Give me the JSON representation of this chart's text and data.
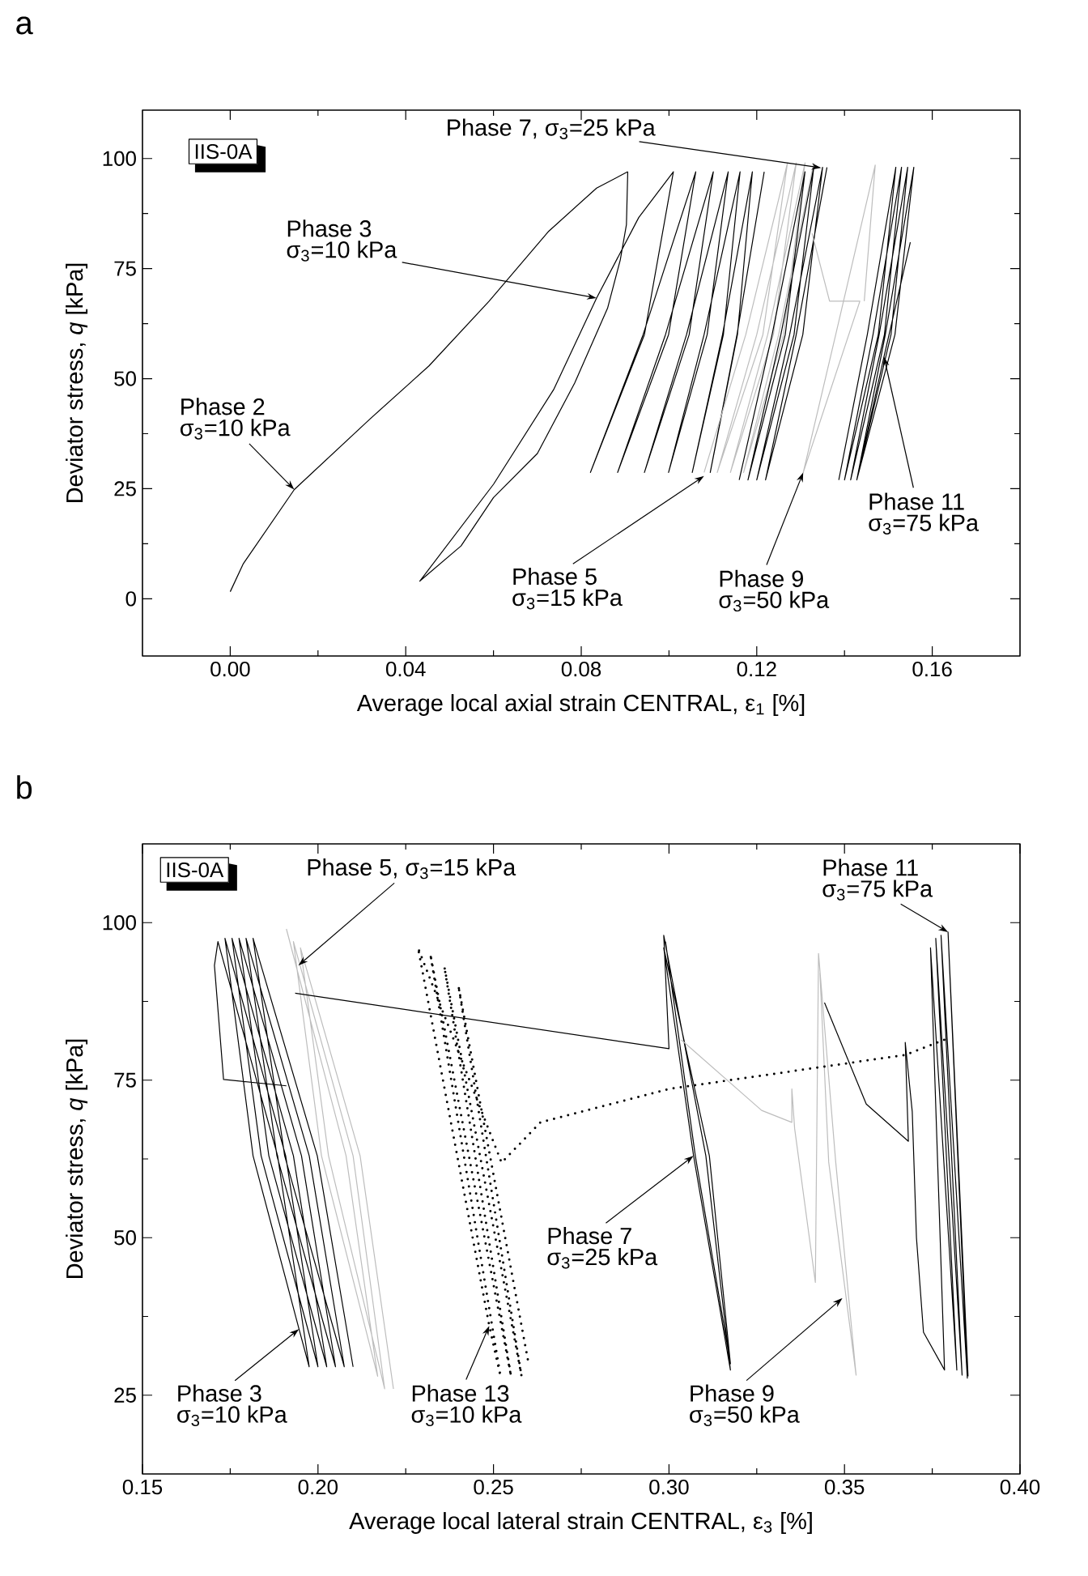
{
  "chart_data": [
    {
      "type": "line",
      "title": "a",
      "subtitle": "IIS-0A",
      "xlabel": "Average local axial strain CENTRAL, ε$_{1}$ [%]",
      "ylabel": "Deviator stress, *q* [kPa]",
      "xlim": [
        -0.02,
        0.18
      ],
      "ylim": [
        -13,
        111
      ],
      "xticks": [
        {
          "value": 0,
          "label": "0.00"
        },
        {
          "value": 0.04,
          "label": "0.04"
        },
        {
          "value": 0.08,
          "label": "0.08"
        },
        {
          "value": 0.12,
          "label": "0.12"
        },
        {
          "value": 0.16,
          "label": "0.16"
        }
      ],
      "yticks": [
        0,
        25,
        50,
        75,
        100
      ],
      "line_style": "solid",
      "series": [
        {
          "color": "#000000",
          "x": [
            0,
            0.003,
            0.0146,
            0.0317,
            0.0453,
            0.059,
            0.0726,
            0.0835,
            0.0906
          ],
          "values": [
            1.6,
            8,
            24.8,
            40.7,
            52.9,
            67.6,
            83.5,
            93.3,
            97
          ]
        },
        {
          "color": "#000000",
          "x": [
            0.0906,
            0.0903,
            0.0889,
            0.086,
            0.0785,
            0.07,
            0.06,
            0.0526,
            0.0432,
            0.06,
            0.0737,
            0.0835,
            0.0931,
            0.101,
            0.0944,
            0.0821,
            0.0941,
            0.1061,
            0.0999,
            0.0883,
            0.0992,
            0.1101,
            0.1046,
            0.0944,
            0.104,
            0.1135,
            0.1087,
            0.0999,
            0.108,
            0.1162,
            0.1124,
            0.1053,
            0.1122,
            0.119,
            0.1156,
            0.1094,
            0.1155,
            0.1217
          ],
          "values": [
            97,
            85,
            77,
            66,
            49,
            33,
            23,
            12,
            4,
            26,
            47.5,
            68.3,
            86.6,
            97,
            60,
            28.7,
            60,
            97,
            60,
            28.7,
            60,
            97,
            60,
            28.7,
            60,
            97,
            60,
            28.7,
            60,
            97,
            60,
            28.7,
            60,
            97,
            60,
            28.7,
            60,
            97
          ]
        },
        {
          "color": "#bdbdbd",
          "x": [
            0.108,
            0.1175,
            0.127,
            0.1214,
            0.111,
            0.12,
            0.129,
            0.1238,
            0.114,
            0.1225,
            0.131,
            0.1261,
            0.117,
            0.125,
            0.133
          ],
          "values": [
            28.7,
            60,
            99,
            60,
            28.7,
            60,
            99,
            60,
            28.7,
            60,
            99,
            60,
            28.7,
            60,
            99
          ]
        },
        {
          "color": "#000000",
          "x": [
            0.116,
            0.1235,
            0.131,
            0.1265,
            0.118,
            0.1255,
            0.133,
            0.1285,
            0.12,
            0.1275,
            0.135,
            0.1305,
            0.122,
            0.129,
            0.136
          ],
          "values": [
            27,
            60,
            97,
            60,
            27,
            60,
            98,
            60,
            27,
            60,
            98,
            60,
            27,
            60,
            98
          ]
        },
        {
          "color": "#bdbdbd",
          "x": [
            0.1326,
            0.1366,
            0.1435,
            0.1306,
            0.138,
            0.147,
            0.1445
          ],
          "values": [
            83,
            67.6,
            67.6,
            28.7,
            60,
            98.5,
            67.6
          ]
        },
        {
          "color": "#000000",
          "x": [
            0.1387,
            0.1452,
            0.1517,
            0.1477,
            0.14,
            0.1465,
            0.153,
            0.1491,
            0.1414,
            0.1479,
            0.1544,
            0.1506,
            0.1428,
            0.1493,
            0.1558,
            0.1515,
            0.1428,
            0.149,
            0.155
          ],
          "values": [
            27,
            60,
            98,
            60,
            27,
            60,
            98,
            60,
            27,
            60,
            98,
            60,
            27,
            60,
            98,
            60,
            27,
            55,
            81
          ]
        }
      ],
      "annotations": [
        "Phase 2",
        {
          "text": "σ$_{3}$=10 kPa",
          "x": 0.0146,
          "y": 24.8
        },
        "Phase 3",
        {
          "text": "σ$_{3}$=10 kPa",
          "x": 0.0835,
          "y": 68.3
        },
        {
          "text": "Phase 7, σ$_{3}$=25 kPa",
          "x": 0.1347,
          "y": 97.9
        },
        {
          "text": "Phase 5",
          "x": 0.108,
          "y": 27.9
        },
        "σ$_{3}$=15 kPa",
        {
          "text": "Phase 9",
          "x": 0.1306,
          "y": 28.7
        },
        "σ$_{3}$=50 kPa",
        {
          "text": "Phase 11",
          "x": 0.149,
          "y": 55
        },
        "σ$_{3}$=75 kPa"
      ]
    },
    {
      "type": "line",
      "title": "b",
      "subtitle": "IIS-0A",
      "xlabel": "Average local lateral strain CENTRAL, ε$_{3}$ [%]",
      "ylabel": "Deviator stress, *q* [kPa]",
      "xlim": [
        0.15,
        0.4
      ],
      "ylim": [
        12.5,
        112.5
      ],
      "xticks": [
        0.15,
        {
          "value": 0.2,
          "label": "0.20"
        },
        0.25,
        {
          "value": 0.3,
          "label": "0.30"
        },
        0.35,
        {
          "value": 0.4,
          "label": "0.40"
        }
      ],
      "yticks": [
        25,
        50,
        75,
        100
      ],
      "line_style": "solid",
      "series": [
        {
          "color": "#000000",
          "x": [
            0.191,
            0.1731,
            0.1705,
            0.1715,
            0.1885,
            0.1975,
            0.1946,
            0.1815,
            0.1735,
            0.1908,
            0.2,
            0.1838,
            0.1755,
            0.193,
            0.2025,
            0.186,
            0.1775,
            0.1953,
            0.205,
            0.1883,
            0.1795,
            0.1975,
            0.2075,
            0.1905,
            0.1815,
            0.1998,
            0.21
          ],
          "values": [
            74.1,
            75.1,
            93.2,
            97,
            63,
            29.5,
            35.5,
            63,
            97.5,
            63,
            29.5,
            63,
            97.5,
            63,
            29.5,
            63,
            97.5,
            63,
            29.5,
            63,
            97.5,
            63,
            29.5,
            63,
            97.5,
            63,
            29.5
          ]
        },
        {
          "color": "#bdbdbd",
          "x": [
            0.191,
            0.208,
            0.217,
            0.201,
            0.193,
            0.21,
            0.219,
            0.203,
            0.195,
            0.212,
            0.2215
          ],
          "values": [
            99,
            63,
            28,
            63,
            97,
            63,
            26,
            63,
            96,
            63,
            26
          ]
        },
        {
          "color": "#000000",
          "x": [
            0.1935,
            0.3,
            0.2985,
            0.3105,
            0.3175,
            0.307,
            0.2985,
            0.3115,
            0.3175,
            0.3075,
            0.299
          ],
          "values": [
            88.8,
            80,
            98,
            63,
            29,
            63,
            96,
            63,
            30,
            63,
            97
          ]
        },
        {
          "color": "#bdbdbd",
          "x": [
            0.3035,
            0.3264,
            0.335,
            0.335,
            0.3358,
            0.3417,
            0.3426,
            0.3475,
            0.3533,
            0.3455,
            0.343
          ],
          "values": [
            81.4,
            70.2,
            68.3,
            73.6,
            67.3,
            42.9,
            95.1,
            62,
            28.2,
            62,
            92
          ]
        },
        {
          "color": "#000000",
          "x": [
            0.3443,
            0.3562,
            0.3682,
            0.3673,
            0.3693,
            0.3705,
            0.3725,
            0.3785,
            0.3745,
            0.382,
            0.376,
            0.3835,
            0.3775,
            0.385,
            0.3795,
            0.3852
          ],
          "values": [
            87.3,
            71.2,
            65.3,
            81,
            70,
            50,
            35,
            29,
            96,
            29,
            97.5,
            28.2,
            98,
            27.7,
            98.5,
            28
          ]
        },
        {
          "color": "#000000",
          "line_style": "dotted",
          "x": [
            0.3784,
            0.3673,
            0.3,
            0.2634,
            0.2523,
            0.2285,
            0.2488,
            0.252,
            0.232,
            0.255,
            0.236,
            0.258,
            0.24,
            0.26
          ],
          "values": [
            81.4,
            79,
            73.6,
            68.3,
            61.9,
            96,
            36,
            28,
            95,
            28,
            93,
            28,
            90,
            30
          ]
        }
      ],
      "annotations": [
        {
          "text": "Phase 5, σ$_{3}$=15 kPa",
          "x": 0.1944,
          "y": 93.2
        },
        "Phase 11",
        {
          "text": "σ$_{3}$=75 kPa",
          "x": 0.3795,
          "y": 98.5
        },
        {
          "text": "Phase 3",
          "x": 0.1946,
          "y": 35.5
        },
        "σ$_{3}$=10 kPa",
        {
          "text": "Phase 13",
          "x": 0.2488,
          "y": 36
        },
        "σ$_{3}$=10 kPa",
        {
          "text": "Phase 7",
          "x": 0.307,
          "y": 63
        },
        "σ$_{3}$=25 kPa",
        {
          "text": "Phase 9",
          "x": 0.3494,
          "y": 40.4
        },
        "σ$_{3}$=50 kPa"
      ]
    }
  ]
}
